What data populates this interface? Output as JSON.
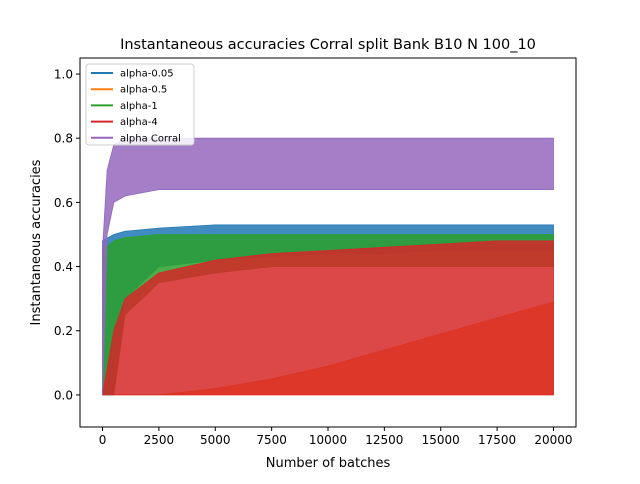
{
  "chart_data": {
    "type": "line",
    "title": "Instantaneous accuracies Corral split Bank B10 N 100_10",
    "xlabel": "Number of batches",
    "ylabel": "Instantaneous accuracies",
    "xlim": [
      -1000,
      21000
    ],
    "ylim": [
      -0.1,
      1.05
    ],
    "xticks": [
      0,
      2500,
      5000,
      7500,
      10000,
      12500,
      15000,
      17500,
      20000
    ],
    "xtick_labels": [
      "0",
      "2500",
      "5000",
      "7500",
      "10000",
      "12500",
      "15000",
      "17500",
      "20000"
    ],
    "yticks": [
      0.0,
      0.2,
      0.4,
      0.6,
      0.8,
      1.0
    ],
    "ytick_labels": [
      "0.0",
      "0.2",
      "0.4",
      "0.6",
      "0.8",
      "1.0"
    ],
    "legend_position": "top-left",
    "grid": false,
    "series": [
      {
        "name": "alpha-0.05",
        "color": "#1f77b4",
        "x": [
          0,
          500,
          1000,
          2500,
          5000,
          7500,
          10000,
          12500,
          15000,
          17500,
          20000
        ],
        "low": [
          0.0,
          0.0,
          0.3,
          0.4,
          0.42,
          0.43,
          0.44,
          0.44,
          0.45,
          0.45,
          0.45
        ],
        "high": [
          0.48,
          0.5,
          0.51,
          0.52,
          0.53,
          0.53,
          0.53,
          0.53,
          0.53,
          0.53,
          0.53
        ]
      },
      {
        "name": "alpha-0.5",
        "color": "#ff7f0e",
        "x": [
          0,
          500,
          1000,
          2500,
          5000,
          7500,
          10000,
          12500,
          15000,
          17500,
          20000
        ],
        "low": [
          0.0,
          0.0,
          0.0,
          0.0,
          0.0,
          0.0,
          0.0,
          0.0,
          0.0,
          0.0,
          0.0
        ],
        "high": [
          0.0,
          0.0,
          0.0,
          0.0,
          0.02,
          0.05,
          0.09,
          0.14,
          0.19,
          0.24,
          0.29
        ]
      },
      {
        "name": "alpha-1",
        "color": "#2ca02c",
        "x": [
          0,
          500,
          1000,
          2500,
          5000,
          7500,
          10000,
          12500,
          15000,
          17500,
          20000
        ],
        "low": [
          0.0,
          0.0,
          0.25,
          0.35,
          0.38,
          0.4,
          0.4,
          0.4,
          0.4,
          0.4,
          0.4
        ],
        "high": [
          0.45,
          0.48,
          0.49,
          0.5,
          0.5,
          0.5,
          0.5,
          0.5,
          0.5,
          0.5,
          0.5
        ]
      },
      {
        "name": "alpha-4",
        "color": "#d62728",
        "x": [
          0,
          500,
          1000,
          2500,
          5000,
          7500,
          10000,
          12500,
          15000,
          17500,
          20000
        ],
        "low": [
          0.0,
          0.0,
          0.0,
          0.0,
          0.0,
          0.0,
          0.0,
          0.0,
          0.0,
          0.0,
          0.0
        ],
        "high": [
          0.0,
          0.2,
          0.3,
          0.38,
          0.42,
          0.44,
          0.45,
          0.46,
          0.47,
          0.48,
          0.48
        ]
      },
      {
        "name": "alpha Corral",
        "color": "#9467bd",
        "x": [
          0,
          200,
          500,
          1000,
          2500,
          5000,
          7500,
          10000,
          12500,
          15000,
          17500,
          20000
        ],
        "low": [
          0.0,
          0.5,
          0.6,
          0.62,
          0.64,
          0.64,
          0.64,
          0.64,
          0.64,
          0.64,
          0.64,
          0.64
        ],
        "high": [
          0.45,
          0.7,
          0.78,
          0.8,
          0.8,
          0.8,
          0.8,
          0.8,
          0.8,
          0.8,
          0.8,
          0.8
        ]
      }
    ]
  }
}
